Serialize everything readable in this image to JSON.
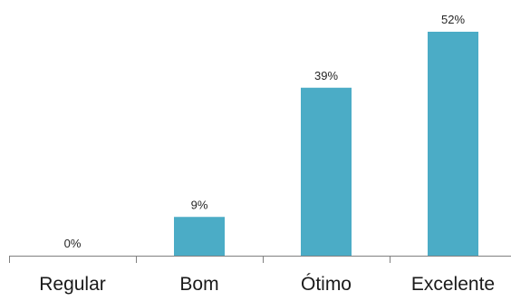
{
  "chart_data": {
    "type": "bar",
    "categories": [
      "Regular",
      "Bom",
      "Ótimo",
      "Excelente"
    ],
    "values": [
      0,
      9,
      39,
      52
    ],
    "data_labels": [
      "0%",
      "9%",
      "39%",
      "52%"
    ],
    "title": "",
    "xlabel": "",
    "ylabel": "",
    "ylim": [
      0,
      52
    ],
    "grid": false,
    "legend": "none",
    "colors": {
      "bar": "#4BACC6",
      "axis": "#808080",
      "text": "#262626"
    }
  }
}
